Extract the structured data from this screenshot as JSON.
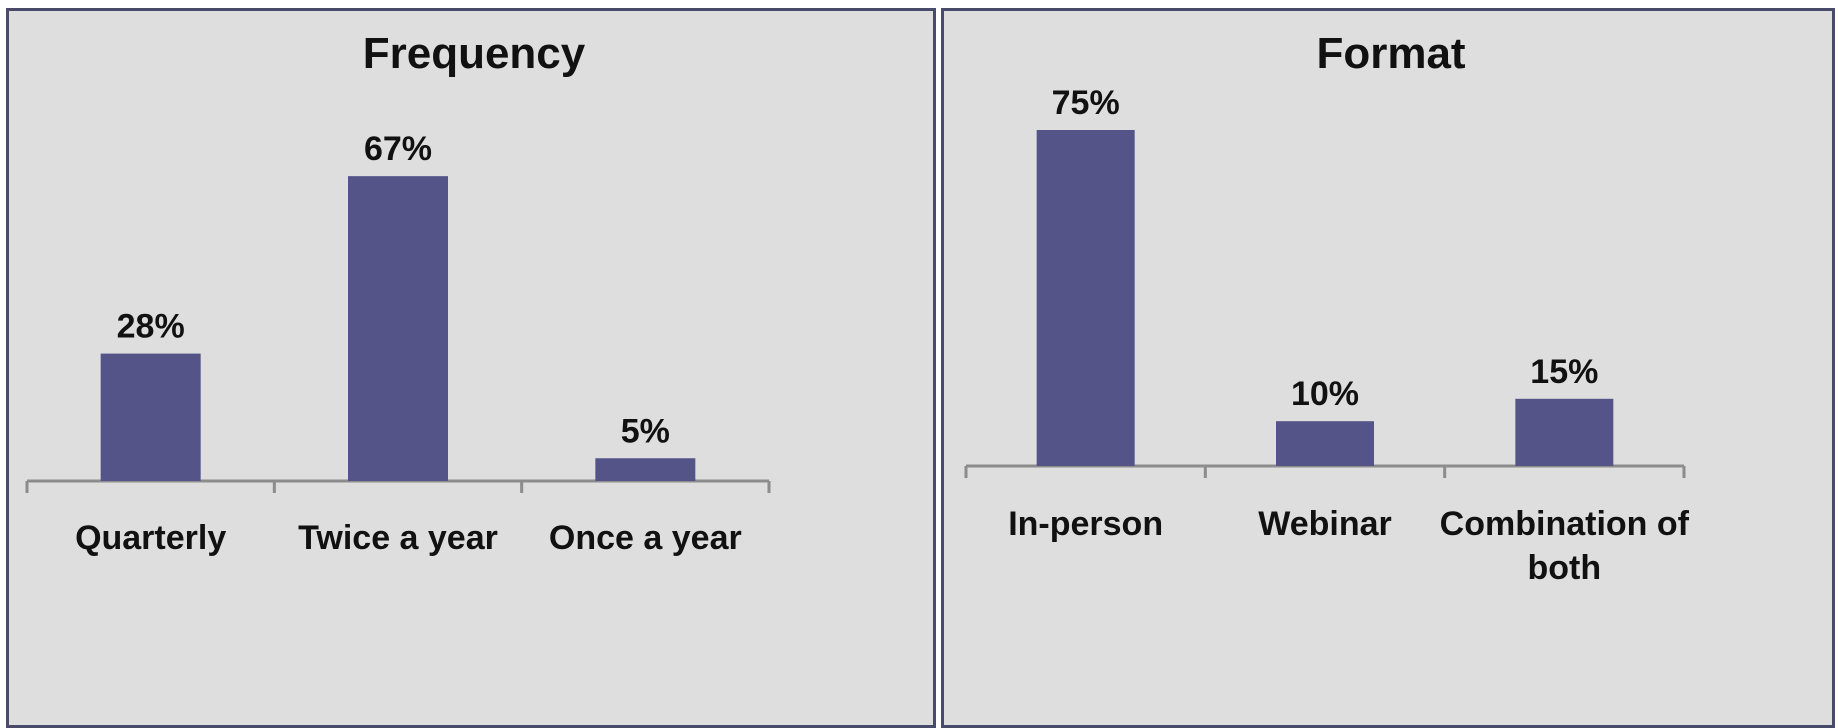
{
  "colors": {
    "bar": "#545489",
    "axis": "#8c8c8c",
    "panel_bg": "#dedede",
    "panel_border": "#4a4a6a"
  },
  "chart_data": [
    {
      "type": "bar",
      "title": "Frequency",
      "categories": [
        "Quarterly",
        "Twice a year",
        "Once a year"
      ],
      "category_lines": [
        [
          "Quarterly"
        ],
        [
          "Twice a year"
        ],
        [
          "Once a year"
        ]
      ],
      "values": [
        28,
        67,
        5
      ],
      "value_labels": [
        "28%",
        "67%",
        "5%"
      ],
      "ylim": [
        0,
        80
      ],
      "grid": false
    },
    {
      "type": "bar",
      "title": "Format",
      "categories": [
        "In-person",
        "Webinar",
        "Combination of both"
      ],
      "category_lines": [
        [
          "In-person"
        ],
        [
          "Webinar"
        ],
        [
          "Combination of",
          "both"
        ]
      ],
      "values": [
        75,
        10,
        15
      ],
      "value_labels": [
        "75%",
        "10%",
        "15%"
      ],
      "ylim": [
        0,
        80
      ],
      "grid": false
    }
  ]
}
